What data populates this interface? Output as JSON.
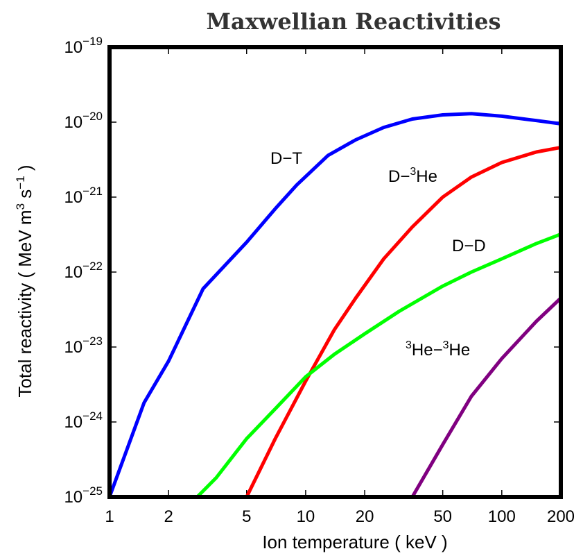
{
  "chart_data": {
    "type": "line",
    "title": "Maxwellian Reactivities",
    "xlabel": "Ion  temperature  ( keV )",
    "ylabel": "Total  reactivity  ( MeV m³ s⁻¹ )",
    "xscale": "log",
    "yscale": "log",
    "xlim": [
      1,
      200
    ],
    "ylim": [
      1e-25,
      1e-19
    ],
    "x_ticks": [
      1,
      2,
      5,
      10,
      20,
      50,
      100,
      200
    ],
    "x_tick_labels": [
      "1",
      "2",
      "5",
      "10",
      "20",
      "50",
      "100",
      "200"
    ],
    "y_ticks": [
      -25,
      -24,
      -23,
      -22,
      -21,
      -20,
      -19
    ],
    "y_tick_base": "10",
    "y_tick_exponents": [
      "−25",
      "−24",
      "−23",
      "−22",
      "−21",
      "−20",
      "−19"
    ],
    "grid": false,
    "series": [
      {
        "name": "D−T",
        "color": "#0000ff",
        "x": [
          1,
          1.5,
          2,
          3,
          5,
          7,
          9,
          13,
          18,
          25,
          35,
          50,
          70,
          100,
          150,
          200
        ],
        "y": [
          1e-25,
          1.8e-24,
          6.5e-24,
          6e-23,
          2.5e-22,
          7e-22,
          1.45e-21,
          3.6e-21,
          5.8e-21,
          8.5e-21,
          1.1e-20,
          1.25e-20,
          1.3e-20,
          1.2e-20,
          1.05e-20,
          9.5e-21
        ]
      },
      {
        "name": "D−³He",
        "color": "#ff0000",
        "x": [
          5,
          7,
          10,
          14,
          18,
          25,
          35,
          50,
          70,
          100,
          150,
          200
        ],
        "y": [
          1e-25,
          6e-25,
          3.5e-24,
          1.7e-23,
          4.5e-23,
          1.5e-22,
          4e-22,
          1e-21,
          1.85e-21,
          2.9e-21,
          4e-21,
          4.6e-21
        ]
      },
      {
        "name": "D−D",
        "color": "#00ff00",
        "x": [
          2.8,
          3.5,
          5,
          7,
          10,
          14,
          20,
          30,
          50,
          70,
          100,
          150,
          200
        ],
        "y": [
          1e-25,
          1.8e-25,
          6e-25,
          1.5e-24,
          4e-24,
          8e-24,
          1.5e-23,
          3e-23,
          6.5e-23,
          1e-22,
          1.5e-22,
          2.4e-22,
          3.2e-22
        ]
      },
      {
        "name": "³He−³He",
        "color": "#800080",
        "x": [
          35,
          50,
          70,
          100,
          150,
          200
        ],
        "y": [
          1e-25,
          5e-25,
          2.2e-24,
          7e-24,
          2.2e-23,
          4.5e-23
        ]
      }
    ]
  },
  "labels": {
    "dt": "D−T",
    "dhe3_prefix": "D−",
    "dhe3_sup": "3",
    "dhe3_suffix": "He",
    "dd": "D−D",
    "he3he3_sup1": "3",
    "he3he3_mid": "He−",
    "he3he3_sup2": "3",
    "he3he3_suffix": "He"
  },
  "ylabel_parts": {
    "main": "Total  reactivity  ( MeV  m",
    "sup1": "3",
    "mid": " s",
    "sup2": "−1",
    "end": " )"
  }
}
